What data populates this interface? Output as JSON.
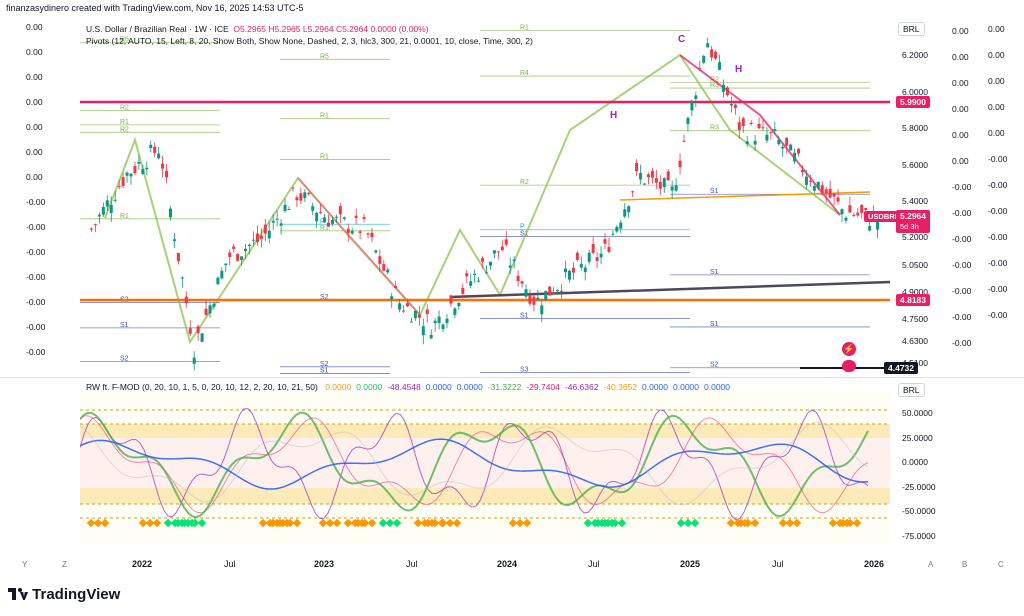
{
  "credit": "finanzasydinero created with TradingView.com, Nov 16, 2025 14:53 UTC-5",
  "main": {
    "symbol": "U.S. Dollar / Brazilian Real · 1W · ICE",
    "ohlc": "O5.2965  H5.2965  L5.2964  C5.2964  0.0000 (0.00%)",
    "pivots": "Pivots (12, AUTO, 15, Left, 8, 20, Show Both, Show None, Dashed, 2, 3, hlc3, 300, 21, 0.0001, 10, close, Time, 300, 2)",
    "currency": "BRL"
  },
  "oscillator": {
    "title": "RW ft. F-MOD (0, 20, 10, 1, 5, 0, 20, 10, 12, 2, 20, 10, 21, 50)",
    "values": [
      {
        "v": "0.0000",
        "color": "#f59e0b"
      },
      {
        "v": "0.0000",
        "color": "#22c55e"
      },
      {
        "v": "-48.4548",
        "color": "#9c27b0"
      },
      {
        "v": "0.0000",
        "color": "#2962ff"
      },
      {
        "v": "0.0000",
        "color": "#2962ff"
      },
      {
        "v": "-31.3222",
        "color": "#4caf50"
      },
      {
        "v": "-29.7404",
        "color": "#e91e63"
      },
      {
        "v": "-46.6362",
        "color": "#9c27b0"
      },
      {
        "v": "-40.3652",
        "color": "#f59e0b"
      },
      {
        "v": "0.0000",
        "color": "#2962ff"
      },
      {
        "v": "0.0000",
        "color": "#2962ff"
      },
      {
        "v": "0.0000",
        "color": "#2962ff"
      }
    ],
    "currency": "BRL",
    "axis": [
      "50.0000",
      "25.0000",
      "0.0000",
      "-25.0000",
      "-50.0000",
      "-75.0000"
    ]
  },
  "price_axis": [
    "6.2000",
    "6.0000",
    "5.8000",
    "5.6000",
    "5.4000",
    "5.2000",
    "5.0500",
    "4.9000",
    "4.7500",
    "4.6300",
    "4.5100"
  ],
  "price_tags": {
    "line_top": {
      "text": "5.9900",
      "color": "#e91e63"
    },
    "usdbrl_label": {
      "text": "USDBRL",
      "color": "#e91e63"
    },
    "usdbrl_price": {
      "text": "5.2964",
      "color": "#e91e63"
    },
    "countdown": {
      "text": "5d 3h",
      "color": "#e91e63"
    },
    "line_orange": {
      "text": "4.8183",
      "color": "#e91e63"
    },
    "line_black": {
      "text": "4.4732",
      "color": "#131722"
    }
  },
  "left_labels": [
    "0.00",
    "0.00",
    "0.00",
    "0.00",
    "0.00",
    "0.00",
    "0.00",
    "-0.00",
    "-0.00",
    "-0.00",
    "-0.00",
    "-0.00",
    "-0.00",
    "-0.00"
  ],
  "right_col1": [
    "0.00",
    "0.00",
    "0.00",
    "0.00",
    "0.00",
    "0.00",
    "-0.00",
    "-0.00",
    "-0.00",
    "-0.00",
    "-0.00",
    "-0.00",
    "-0.00"
  ],
  "right_col2": [
    "0.00",
    "0.00",
    "0.00",
    "0.00",
    "0.00",
    "-0.00",
    "-0.00",
    "-0.00",
    "-0.00",
    "-0.00",
    "-0.00",
    "-0.00"
  ],
  "time_axis": [
    "2022",
    "Jul",
    "2023",
    "Jul",
    "2024",
    "Jul",
    "2025",
    "Jul",
    "2026"
  ],
  "corners": [
    "Y",
    "Z",
    "A",
    "B",
    "C"
  ],
  "logo": "TradingView",
  "chart_data": {
    "type": "line",
    "title": "U.S. Dollar / Brazilian Real · 1W · ICE",
    "series": [
      {
        "name": "USDBRL",
        "x": [
          "2021-09",
          "2021-11",
          "2022-01",
          "2022-04",
          "2022-06",
          "2022-09",
          "2022-11",
          "2023-01",
          "2023-03",
          "2023-06",
          "2023-07",
          "2023-09",
          "2023-10",
          "2023-12",
          "2024-03",
          "2024-05",
          "2024-07",
          "2024-09",
          "2024-12",
          "2025-02",
          "2025-04",
          "2025-06",
          "2025-09",
          "2025-11"
        ],
        "values": [
          5.25,
          5.55,
          5.7,
          4.6,
          5.1,
          5.2,
          5.45,
          5.3,
          5.25,
          4.85,
          4.72,
          4.95,
          5.15,
          4.85,
          5.0,
          5.12,
          5.55,
          5.45,
          6.3,
          5.8,
          5.75,
          5.55,
          5.35,
          5.3
        ]
      }
    ],
    "pivot_labels": [
      {
        "label": "R6",
        "value": 6.277
      },
      {
        "label": "R5",
        "value": 6.184
      },
      {
        "label": "R4",
        "value": 6.092
      },
      {
        "label": "R3",
        "value": 6.026
      },
      {
        "label": "R2",
        "value": 5.904
      },
      {
        "label": "R1",
        "value": 5.858
      },
      {
        "label": "R1",
        "value": 6.343
      },
      {
        "label": "R3",
        "value": 5.792
      },
      {
        "label": "R2",
        "value": 5.783
      },
      {
        "label": "R1",
        "value": 5.634
      },
      {
        "label": "R2",
        "value": 5.493
      },
      {
        "label": "S1",
        "value": 5.443
      },
      {
        "label": "R1",
        "value": 5.308
      },
      {
        "label": "R1",
        "value": 5.242
      },
      {
        "label": "S1",
        "value": 5.211
      },
      {
        "label": "R2",
        "value": 6.058
      },
      {
        "label": "R1",
        "value": 5.824
      },
      {
        "label": "P",
        "value": 5.278
      },
      {
        "label": "P",
        "value": 5.248
      },
      {
        "label": "S1",
        "value": 5.0
      },
      {
        "label": "S2",
        "value": 4.848
      },
      {
        "label": "S2",
        "value": 4.861
      },
      {
        "label": "S1",
        "value": 4.76
      },
      {
        "label": "S1",
        "value": 4.714
      },
      {
        "label": "S1",
        "value": 4.709
      },
      {
        "label": "S2",
        "value": 4.495
      },
      {
        "label": "S3",
        "value": 4.464
      },
      {
        "label": "S2",
        "value": 4.49
      },
      {
        "label": "S2",
        "value": 4.524
      },
      {
        "label": "S1",
        "value": 4.458
      }
    ],
    "pattern_labels": [
      "C",
      "H",
      "H"
    ],
    "horizontal_lines": [
      5.99,
      4.8183,
      4.4732
    ],
    "ylim": [
      4.45,
      6.4
    ]
  }
}
